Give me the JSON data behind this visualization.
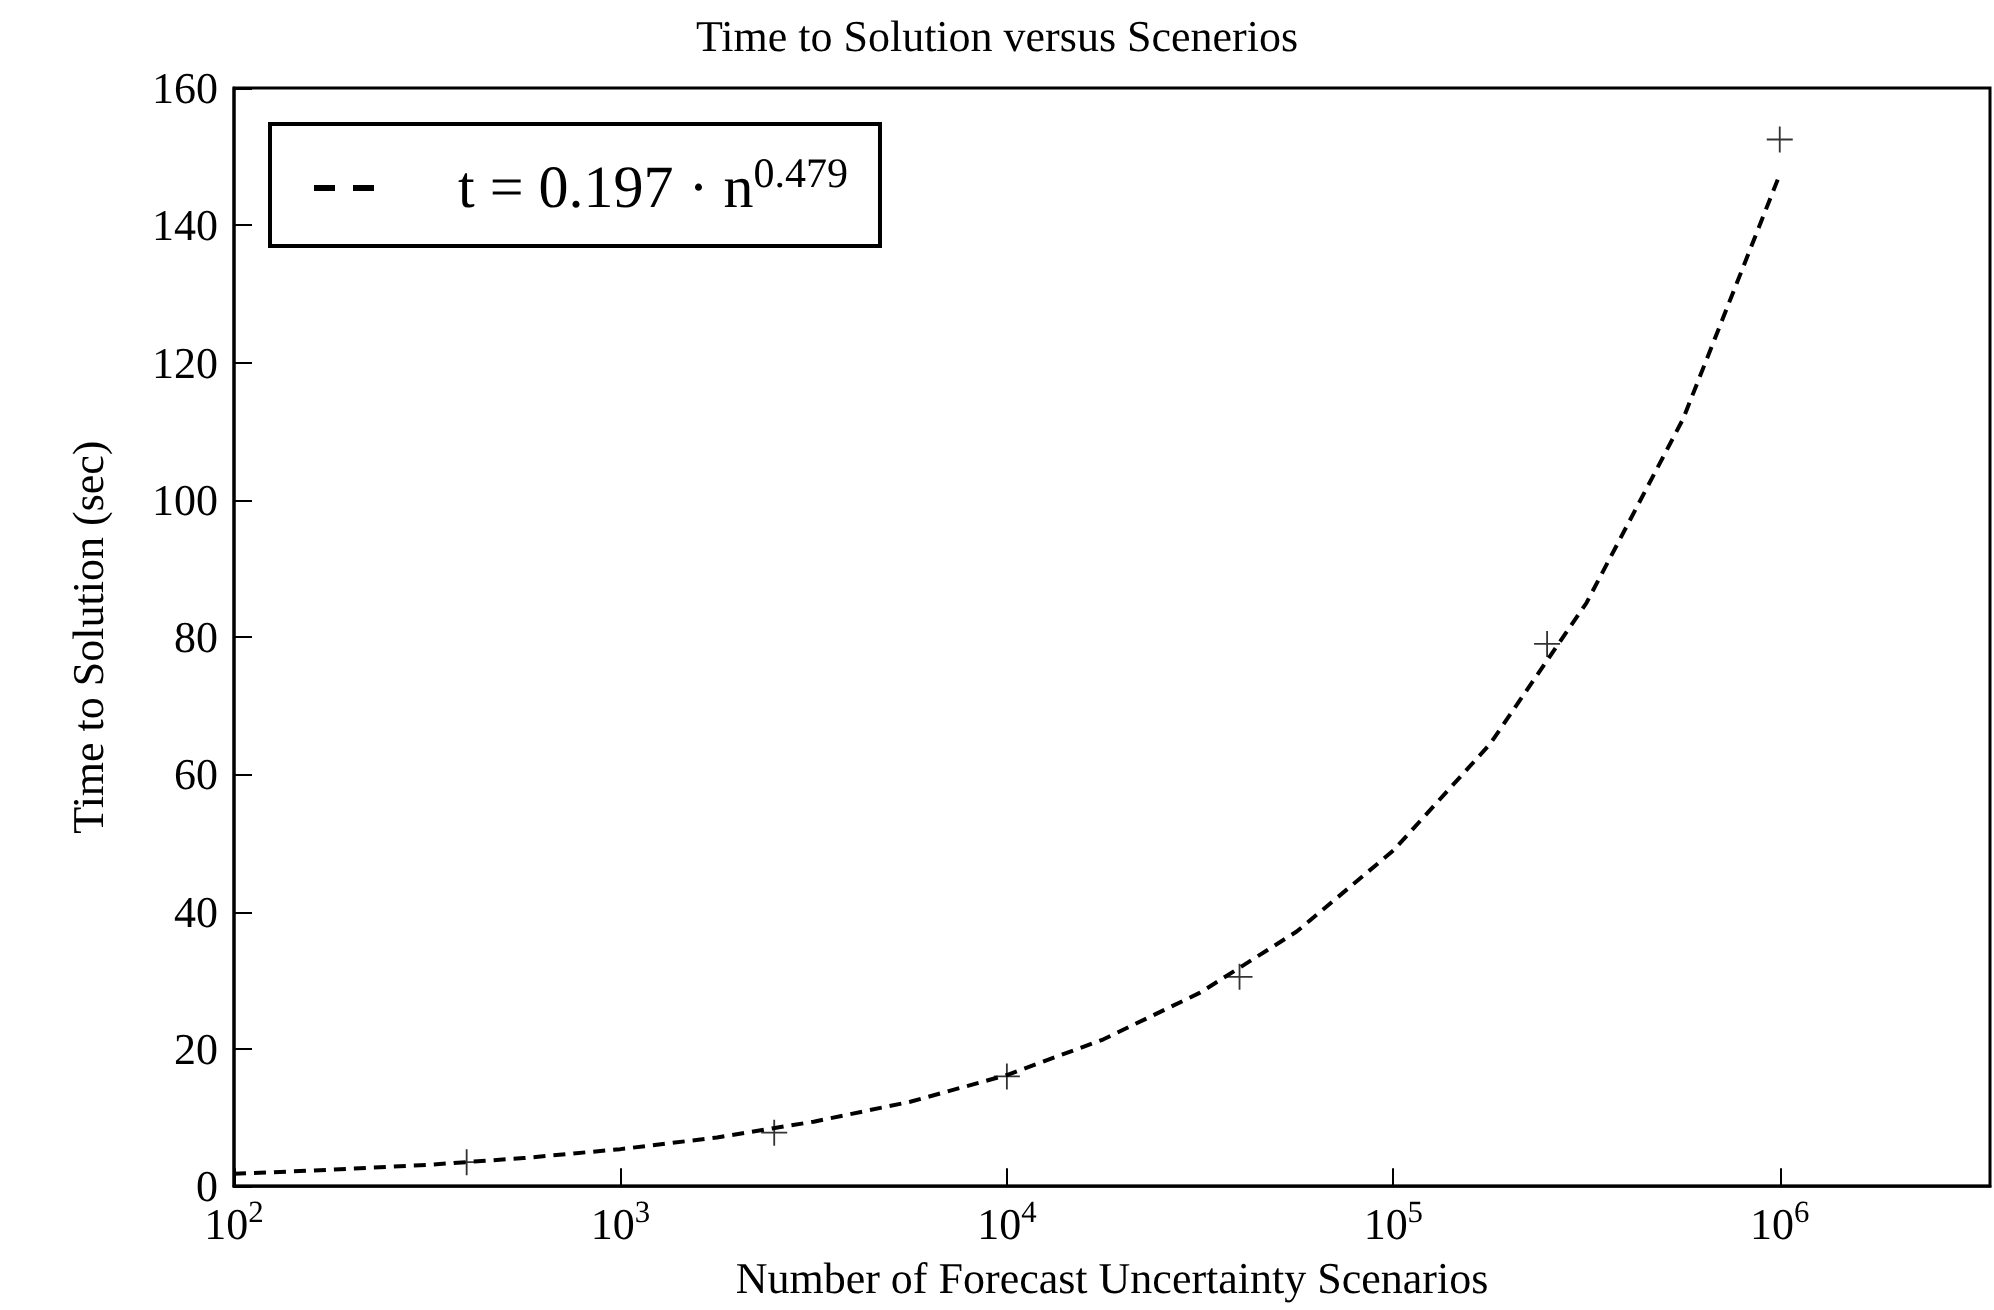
{
  "chart_data": {
    "type": "scatter",
    "title": "Time to Solution versus Scenerios",
    "xlabel": "Number of Forecast Uncertainty Scenarios",
    "ylabel": "Time to Solution (sec)",
    "log": "x",
    "grid": false,
    "legend": "top left",
    "xlim": [
      100,
      3500000
    ],
    "xticks": [
      {
        "value": 100,
        "label": "10$^{2}$"
      },
      {
        "value": 1000,
        "label": "10$^{3}$"
      },
      {
        "value": 10000,
        "label": "10$^{4}$"
      },
      {
        "value": 100000,
        "label": "10$^{5}$"
      },
      {
        "value": 1000000,
        "label": "10$^{6}$"
      }
    ],
    "ylim": [
      0,
      160
    ],
    "yticks": [
      0,
      20,
      40,
      60,
      80,
      100,
      120,
      140,
      160
    ],
    "series": [
      {
        "marker": "cross",
        "color": "#000000",
        "x": [
          400,
          2500,
          10000,
          40000,
          250000,
          1000000
        ],
        "values": [
          3.5,
          7.8,
          16,
          30.5,
          79,
          152.5
        ]
      },
      {
        "type": "line",
        "name": "t = 0.197 · n$^{0.479}$",
        "marker": "none",
        "line_style": "dashed",
        "color": "#000000",
        "x": [
          100,
          178,
          316,
          562,
          1000,
          1778,
          3162,
          5623,
          10000,
          17783,
          31623,
          56234,
          100000,
          177828,
          316228,
          562341,
          1000000
        ],
        "values": [
          1.8,
          2.4,
          3.1,
          4.1,
          5.4,
          7.1,
          9.4,
          12.3,
          16.2,
          21.4,
          28.2,
          37.1,
          48.9,
          64.4,
          85,
          111.8,
          147.4
        ]
      }
    ]
  }
}
